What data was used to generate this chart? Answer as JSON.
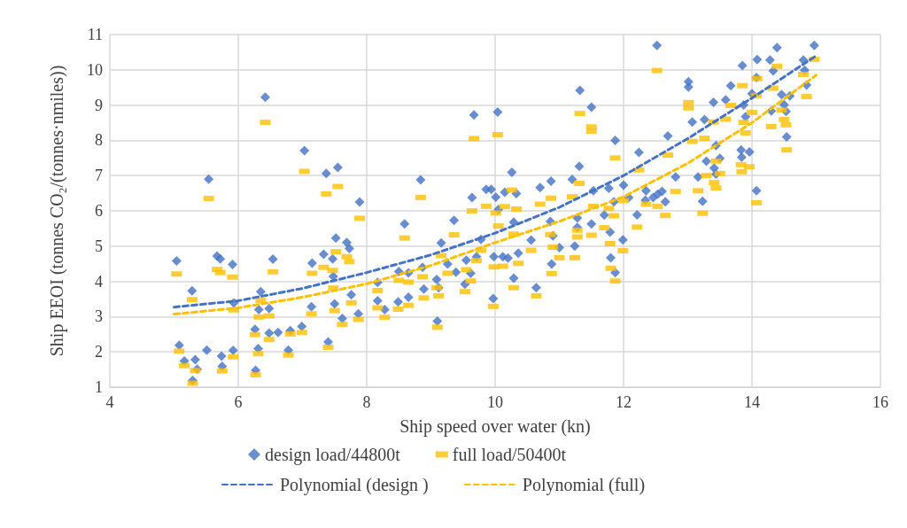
{
  "chart_data": {
    "type": "scatter",
    "xlabel": "Ship speed over water (kn)",
    "ylabel": "Ship EEOI (tonnes CO₂/(tonnes·nmiles))",
    "xlim": [
      4,
      16
    ],
    "xticks": [
      4,
      6,
      8,
      10,
      12,
      14,
      16
    ],
    "ylim": [
      1,
      11
    ],
    "yticks": [
      1,
      2,
      3,
      4,
      5,
      6,
      7,
      8,
      9,
      10,
      11
    ],
    "grid": true,
    "legend": "bottom",
    "series": [
      {
        "name": "design load/44800t",
        "marker": "diamond",
        "color": "#4472c4",
        "x": [
          6.42,
          7.03,
          5.54,
          7.37,
          7.55,
          7.89,
          5.04,
          5.67,
          5.72,
          5.91,
          6.54,
          5.28,
          5.93,
          6.35,
          6.32,
          6.48,
          7.15,
          7.33,
          7.47,
          7.52,
          7.69,
          7.73,
          7.48,
          7.76,
          7.87,
          7.14,
          7.5,
          7.62,
          6.26,
          6.48,
          6.62,
          6.81,
          6.99,
          6.78,
          7.4,
          5.08,
          5.16,
          5.33,
          5.29,
          5.51,
          5.74,
          5.36,
          5.92,
          5.75,
          6.27,
          6.31,
          11.32,
          11.5,
          9.67,
          10.04,
          11.87,
          11.31,
          8.84,
          10.26,
          9.64,
          9.86,
          9.94,
          10.01,
          10.15,
          10.33,
          10.7,
          10.87,
          11.2,
          11.53,
          11.77,
          11.85,
          8.59,
          9.36,
          9.16,
          9.78,
          10.05,
          10.29,
          10.56,
          10.86,
          10.9,
          11.0,
          11.28,
          11.28,
          11.5,
          11.7,
          11.79,
          11.24,
          11.8,
          11.87,
          10.88,
          10.64,
          10.29,
          10.36,
          10.12,
          10.2,
          9.98,
          9.97,
          9.1,
          9.55,
          9.62,
          9.53,
          9.71,
          9.39,
          9.26,
          9.09,
          9.12,
          8.87,
          8.89,
          8.65,
          8.5,
          8.65,
          8.49,
          8.28,
          8.17,
          8.17,
          12.52,
          13.01,
          13.01,
          13.85,
          14.08,
          14.28,
          14.39,
          14.97,
          14.8,
          14.82,
          14.33,
          14.07,
          13.67,
          14.0,
          14.46,
          14.59,
          14.85,
          14.5,
          14.53,
          14.54,
          13.59,
          13.4,
          13.87,
          14.3,
          13.9,
          13.07,
          13.26,
          12.69,
          12.24,
          13.44,
          13.83,
          13.96,
          13.84,
          13.5,
          13.29,
          13.41,
          13.44,
          12.81,
          13.16,
          13.23,
          14.07,
          12.35,
          12.53,
          12.6,
          12.46,
          12.65,
          12.34,
          12.21,
          12.08,
          12.0,
          11.99
        ],
        "values": [
          9.22,
          7.71,
          6.9,
          7.06,
          7.23,
          6.25,
          4.58,
          4.72,
          4.64,
          4.48,
          4.63,
          3.73,
          3.39,
          3.71,
          3.2,
          3.23,
          4.52,
          4.77,
          4.64,
          5.23,
          5.1,
          4.93,
          4.14,
          3.62,
          3.08,
          3.28,
          3.36,
          2.95,
          2.64,
          2.53,
          2.55,
          2.6,
          2.72,
          2.05,
          2.28,
          2.19,
          1.74,
          1.78,
          1.19,
          2.05,
          1.88,
          1.51,
          2.04,
          1.59,
          1.48,
          2.09,
          9.42,
          8.94,
          8.72,
          8.8,
          8.0,
          7.26,
          6.88,
          7.09,
          6.38,
          6.61,
          6.61,
          6.39,
          6.53,
          6.49,
          6.66,
          6.84,
          6.89,
          6.57,
          6.64,
          6.26,
          5.63,
          5.73,
          5.09,
          5.19,
          6.04,
          5.68,
          5.17,
          5.7,
          5.29,
          4.96,
          5.8,
          5.53,
          5.63,
          5.88,
          5.4,
          5.0,
          4.67,
          4.25,
          4.49,
          3.82,
          4.09,
          4.8,
          4.7,
          4.66,
          4.7,
          3.51,
          2.87,
          4.6,
          4.23,
          3.92,
          4.7,
          4.26,
          4.49,
          4.05,
          3.82,
          4.4,
          3.78,
          4.24,
          4.28,
          3.55,
          3.42,
          3.2,
          3.45,
          3.97,
          10.69,
          9.66,
          9.51,
          10.12,
          10.29,
          10.28,
          10.63,
          10.69,
          10.28,
          9.99,
          9.97,
          9.78,
          9.55,
          9.32,
          9.3,
          9.26,
          9.57,
          9.01,
          8.82,
          8.1,
          9.15,
          9.08,
          9.0,
          8.83,
          8.67,
          8.52,
          8.59,
          8.12,
          7.66,
          7.85,
          7.73,
          7.67,
          7.52,
          7.49,
          7.41,
          7.21,
          7.04,
          6.96,
          6.96,
          6.27,
          6.57,
          6.57,
          6.47,
          6.55,
          6.38,
          6.26,
          6.3,
          5.89,
          6.38,
          6.73,
          5.18
        ]
      },
      {
        "name": "full load/50400t",
        "color": "#ffc000",
        "x": [
          6.42,
          7.03,
          5.54,
          7.37,
          7.55,
          7.89,
          5.04,
          5.67,
          5.72,
          5.91,
          6.54,
          5.28,
          5.93,
          6.35,
          6.32,
          6.48,
          7.15,
          7.33,
          7.47,
          7.52,
          7.69,
          7.73,
          7.48,
          7.76,
          7.87,
          7.14,
          7.5,
          7.62,
          6.26,
          6.48,
          6.81,
          6.99,
          6.78,
          7.4,
          5.08,
          5.16,
          5.33,
          5.29,
          5.92,
          5.75,
          6.27,
          6.31,
          11.32,
          11.5,
          11.5,
          9.67,
          10.04,
          11.87,
          11.31,
          8.84,
          10.26,
          9.64,
          9.86,
          10.01,
          10.15,
          10.33,
          10.7,
          10.87,
          11.2,
          11.53,
          11.77,
          11.85,
          8.59,
          9.36,
          9.16,
          9.78,
          10.05,
          10.29,
          10.56,
          10.86,
          10.9,
          11.0,
          11.28,
          11.28,
          11.5,
          11.7,
          11.79,
          11.24,
          11.8,
          11.87,
          10.88,
          10.64,
          10.29,
          10.36,
          10.12,
          9.98,
          9.97,
          9.1,
          9.55,
          9.62,
          9.53,
          9.71,
          9.26,
          9.09,
          9.12,
          8.87,
          8.89,
          8.65,
          8.5,
          8.65,
          8.49,
          8.28,
          8.17,
          8.17,
          12.52,
          13.01,
          13.01,
          13.85,
          14.08,
          14.39,
          14.97,
          14.8,
          14.33,
          14.07,
          13.67,
          14.0,
          14.46,
          14.85,
          14.5,
          14.53,
          14.54,
          13.59,
          13.4,
          13.87,
          14.3,
          13.9,
          13.07,
          13.26,
          12.69,
          12.24,
          13.44,
          13.83,
          13.96,
          13.84,
          13.5,
          13.29,
          13.41,
          13.44,
          12.81,
          13.16,
          13.23,
          14.07,
          12.35,
          12.53,
          12.65,
          12.21,
          12.0,
          11.99
        ],
        "values": [
          8.51,
          7.12,
          6.35,
          6.48,
          6.69,
          5.79,
          4.21,
          4.34,
          4.25,
          4.12,
          4.27,
          3.48,
          3.19,
          3.46,
          2.99,
          3.02,
          4.23,
          4.4,
          4.31,
          4.84,
          4.7,
          4.56,
          3.81,
          3.39,
          2.92,
          3.08,
          3.17,
          2.78,
          2.49,
          2.35,
          2.51,
          2.55,
          1.91,
          2.13,
          2.02,
          1.61,
          1.47,
          1.11,
          1.86,
          1.46,
          1.35,
          1.95,
          8.76,
          8.38,
          8.26,
          8.05,
          8.16,
          7.5,
          6.78,
          6.38,
          6.59,
          6.0,
          6.13,
          5.94,
          6.12,
          6.05,
          6.19,
          6.36,
          6.4,
          6.13,
          6.07,
          5.86,
          5.23,
          5.32,
          4.73,
          4.88,
          5.57,
          5.34,
          4.88,
          5.33,
          4.97,
          4.67,
          5.45,
          5.26,
          5.31,
          5.52,
          5.07,
          4.67,
          4.37,
          4.01,
          4.22,
          3.59,
          3.82,
          4.51,
          4.43,
          4.41,
          3.29,
          2.7,
          4.33,
          4.01,
          3.71,
          4.59,
          4.23,
          3.82,
          3.59,
          4.13,
          3.53,
          3.98,
          4.03,
          3.32,
          3.21,
          2.98,
          3.25,
          3.74,
          9.98,
          9.07,
          8.92,
          9.55,
          9.75,
          10.1,
          10.3,
          9.87,
          9.48,
          9.27,
          8.99,
          8.79,
          8.86,
          9.24,
          8.59,
          8.44,
          7.73,
          8.6,
          8.52,
          8.51,
          8.39,
          8.21,
          7.97,
          8.06,
          7.58,
          7.16,
          7.41,
          7.31,
          7.25,
          7.11,
          7.06,
          7.0,
          6.8,
          6.65,
          6.55,
          6.57,
          5.93,
          6.23,
          6.19,
          6.13,
          5.87,
          5.54,
          6.29,
          4.87
        ]
      },
      {
        "name": "Polynomial (design )",
        "type": "line",
        "line_style": "dashed",
        "color": "#4472c4",
        "x": [
          5,
          6,
          7,
          8,
          9,
          10,
          11,
          12,
          13,
          14,
          15
        ],
        "values": [
          3.27,
          3.45,
          3.8,
          4.25,
          4.75,
          5.37,
          6.1,
          7.0,
          8.05,
          9.2,
          10.4
        ]
      },
      {
        "name": "Polynomial (full)",
        "type": "line",
        "line_style": "dashed",
        "color": "#ffc000",
        "x": [
          5,
          6,
          7,
          8,
          9,
          10,
          11,
          12,
          13,
          14,
          15
        ],
        "values": [
          3.07,
          3.25,
          3.55,
          3.93,
          4.45,
          5.1,
          5.7,
          6.4,
          7.35,
          8.5,
          9.85
        ]
      }
    ]
  }
}
